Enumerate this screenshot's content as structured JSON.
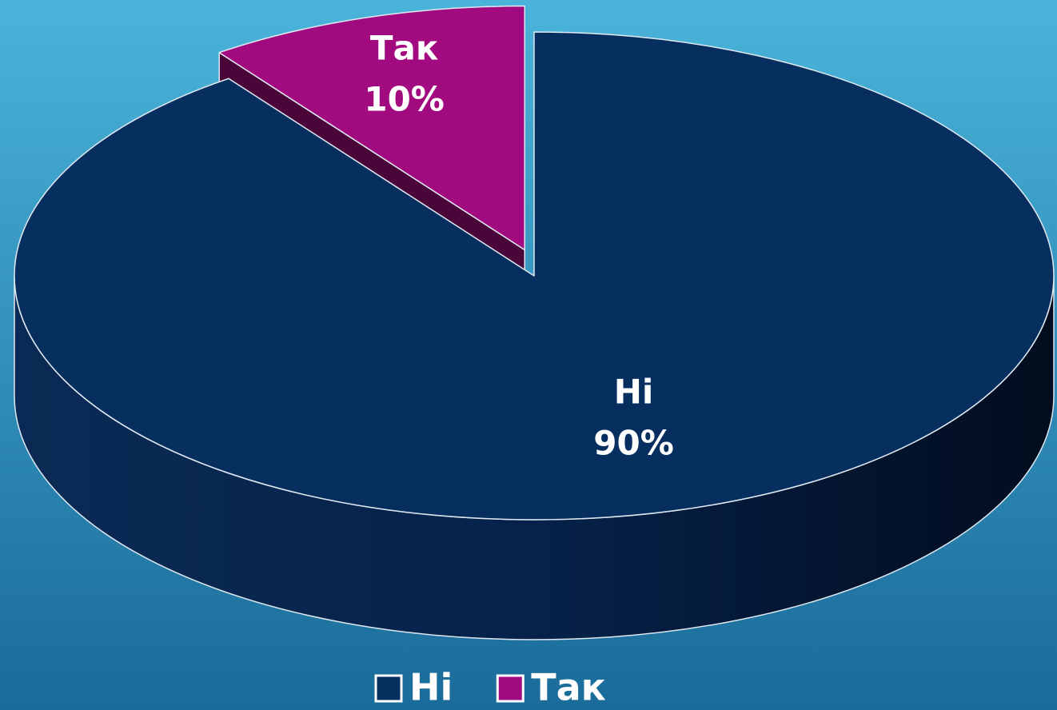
{
  "chart_data": {
    "type": "pie",
    "categories": [
      "Ні",
      "Так"
    ],
    "values": [
      90,
      10
    ],
    "value_labels": [
      "90%",
      "10%"
    ],
    "colors": [
      "#062f5f",
      "#a20b7f"
    ],
    "legend": "bottom"
  }
}
